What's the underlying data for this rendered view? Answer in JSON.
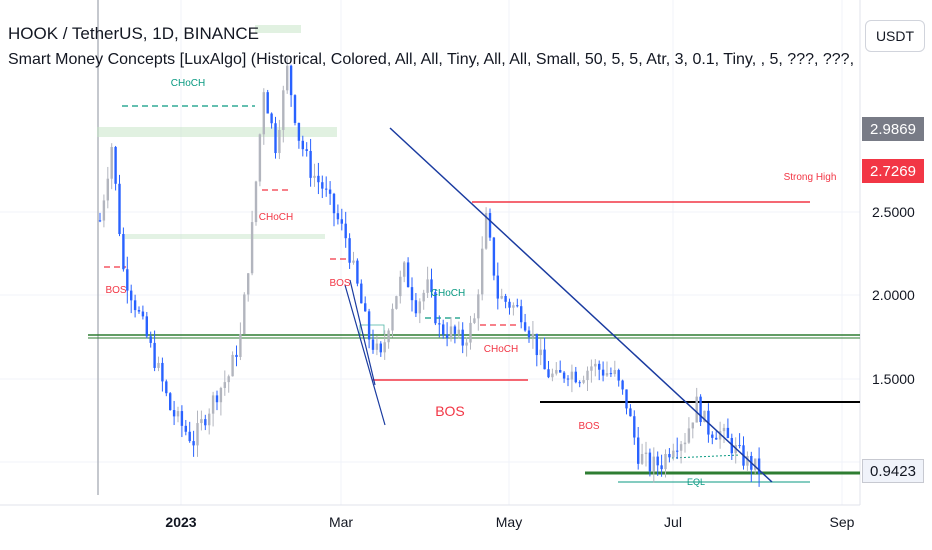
{
  "header": {
    "title": "HOOK / TetherUS, 1D, BINANCE",
    "indicator": "Smart Money Concepts [LuxAlgo] (Historical, Colored, All, All, Tiny, All, All, Small, 50, 5, 5, Atr, 3, 0.1, Tiny, , 5, ???, ???, ?"
  },
  "axis_currency": "USDT",
  "badges": [
    {
      "label": "2.9869",
      "color": "#787b86"
    },
    {
      "label": "2.7269",
      "color": "#f23645"
    },
    {
      "label": "0.9423",
      "color": "#f0f3fa"
    }
  ],
  "chart_data": {
    "type": "candlestick",
    "symbol": "HOOK / TetherUS",
    "interval": "1D",
    "exchange": "BINANCE",
    "y_ticks": [
      "2.5000",
      "2.0000",
      "1.5000"
    ],
    "y_tick_values": [
      2.5,
      2.0,
      1.5
    ],
    "x_ticks": [
      "2023",
      "Mar",
      "May",
      "Jul",
      "Sep"
    ],
    "price_path": [
      [
        0,
        2.45
      ],
      [
        3,
        2.9
      ],
      [
        6,
        2.15
      ],
      [
        9,
        1.95
      ],
      [
        12,
        1.75
      ],
      [
        15,
        1.55
      ],
      [
        18,
        1.32
      ],
      [
        21,
        1.22
      ],
      [
        24,
        1.13
      ],
      [
        27,
        1.28
      ],
      [
        30,
        1.42
      ],
      [
        33,
        1.52
      ],
      [
        36,
        1.75
      ],
      [
        39,
        2.4
      ],
      [
        42,
        3.25
      ],
      [
        45,
        2.9
      ],
      [
        48,
        3.35
      ],
      [
        51,
        2.95
      ],
      [
        54,
        2.75
      ],
      [
        57,
        2.65
      ],
      [
        60,
        2.5
      ],
      [
        63,
        2.35
      ],
      [
        66,
        2.05
      ],
      [
        69,
        1.75
      ],
      [
        72,
        1.62
      ],
      [
        75,
        1.95
      ],
      [
        78,
        2.15
      ],
      [
        81,
        1.95
      ],
      [
        84,
        2.05
      ],
      [
        87,
        1.8
      ],
      [
        90,
        1.78
      ],
      [
        93,
        1.72
      ],
      [
        96,
        1.85
      ],
      [
        99,
        2.45
      ],
      [
        102,
        2.0
      ],
      [
        105,
        1.95
      ],
      [
        108,
        1.9
      ],
      [
        111,
        1.75
      ],
      [
        114,
        1.55
      ],
      [
        117,
        1.5
      ],
      [
        120,
        1.55
      ],
      [
        123,
        1.52
      ],
      [
        126,
        1.58
      ],
      [
        129,
        1.55
      ],
      [
        132,
        1.52
      ],
      [
        135,
        1.35
      ],
      [
        138,
        1.05
      ],
      [
        141,
        0.98
      ],
      [
        144,
        1.0
      ],
      [
        147,
        1.12
      ],
      [
        150,
        1.15
      ],
      [
        153,
        1.35
      ],
      [
        156,
        1.2
      ],
      [
        159,
        1.18
      ],
      [
        162,
        1.1
      ],
      [
        165,
        1.02
      ],
      [
        168,
        0.97
      ],
      [
        170,
        0.94
      ]
    ],
    "levels": [
      {
        "label": "Strong High",
        "price": 2.52,
        "color": "#f23645"
      },
      {
        "label": "",
        "price": 1.34,
        "color": "#000000"
      },
      {
        "label": "",
        "price": 1.76,
        "color": "#2e7d32"
      },
      {
        "label": "",
        "price": 0.94,
        "color": "#2e7d32"
      }
    ],
    "structure_labels": [
      {
        "text": "CHoCH",
        "color": "#089981"
      },
      {
        "text": "CHoCH",
        "color": "#f23645"
      },
      {
        "text": "BOS",
        "color": "#f23645"
      },
      {
        "text": "BOS",
        "color": "#f23645"
      },
      {
        "text": "CHoCH",
        "color": "#089981"
      },
      {
        "text": "CHoCH",
        "color": "#f23645"
      },
      {
        "text": "BOS",
        "color": "#f23645"
      },
      {
        "text": "BOS",
        "color": "#f23645"
      },
      {
        "text": "Strong High",
        "color": "#f23645"
      },
      {
        "text": "EQL",
        "color": "#089981"
      }
    ],
    "colors": {
      "up": "#089981",
      "down": "#2962ff",
      "grid": "#f0f3fa",
      "trendline": "#1a3ba0"
    }
  }
}
